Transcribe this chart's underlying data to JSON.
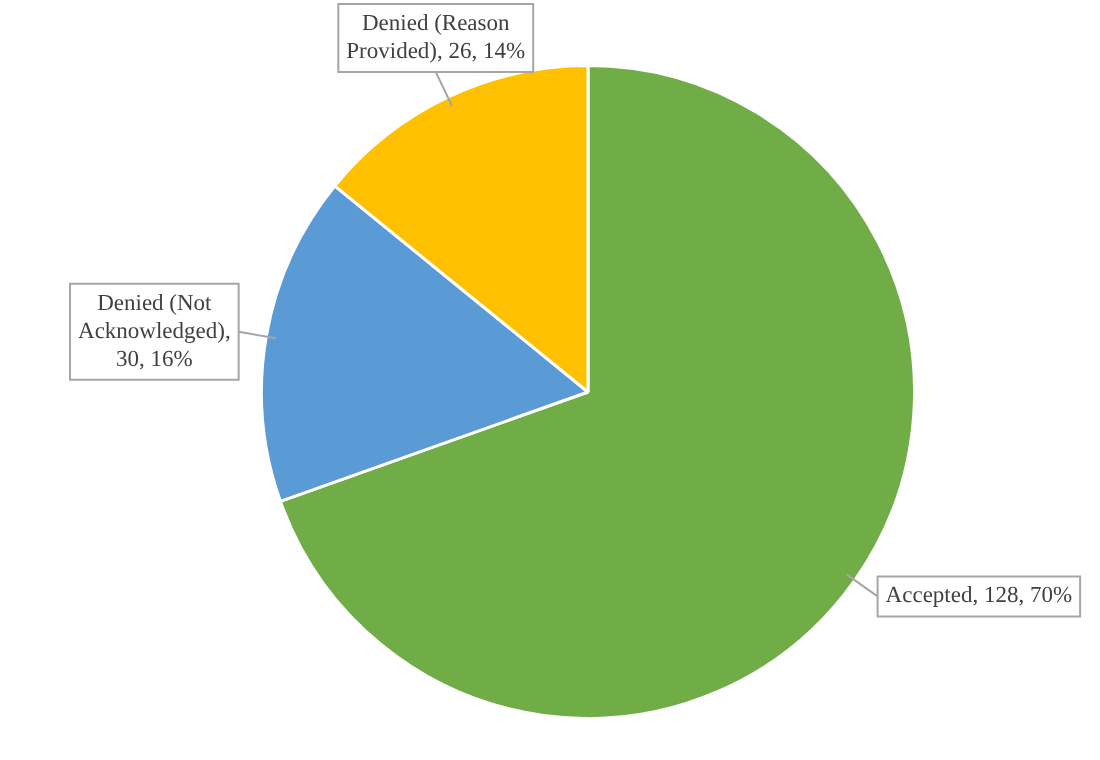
{
  "chart_data": {
    "type": "pie",
    "categories": [
      "Accepted",
      "Denied (Not Acknowledged)",
      "Denied (Reason Provided)"
    ],
    "values": [
      128,
      30,
      26
    ],
    "colors": [
      "#70ad47",
      "#5b9bd5",
      "#ffc000"
    ],
    "value_labels": [
      ", 128, 70%",
      ", 30, 16%",
      ", 26, 14%"
    ],
    "legend": false
  }
}
